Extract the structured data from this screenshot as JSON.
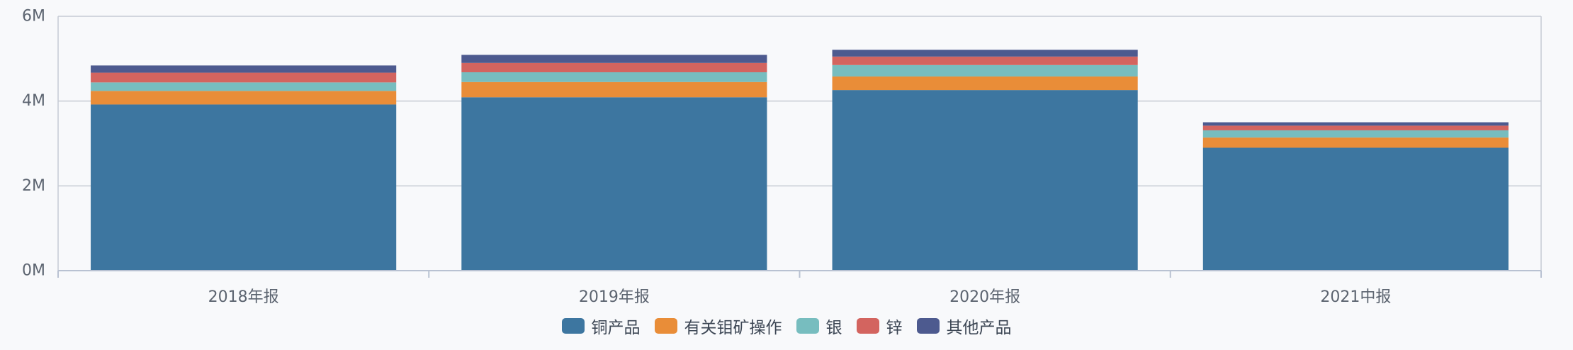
{
  "chart_data": {
    "type": "bar",
    "stacked": true,
    "categories": [
      "2018年报",
      "2019年报",
      "2020年报",
      "2021中报"
    ],
    "ylim": [
      0,
      6000000
    ],
    "yticks": [
      {
        "value": 0,
        "label": "0M"
      },
      {
        "value": 2000000,
        "label": "2M"
      },
      {
        "value": 4000000,
        "label": "4M"
      },
      {
        "value": 6000000,
        "label": "6M"
      }
    ],
    "grid": true,
    "legend_position": "bottom",
    "series": [
      {
        "name": "铜产品",
        "color": "#3d76a0",
        "values": [
          3920000,
          4090000,
          4260000,
          2900000
        ]
      },
      {
        "name": "有关钼矿操作",
        "color": "#e98d38",
        "values": [
          320000,
          360000,
          320000,
          240000
        ]
      },
      {
        "name": "银",
        "color": "#77bdbf",
        "values": [
          200000,
          230000,
          270000,
          170000
        ]
      },
      {
        "name": "锌",
        "color": "#d3645f",
        "values": [
          230000,
          220000,
          200000,
          110000
        ]
      },
      {
        "name": "其他产品",
        "color": "#4d5a8f",
        "values": [
          170000,
          190000,
          160000,
          80000
        ]
      }
    ]
  }
}
